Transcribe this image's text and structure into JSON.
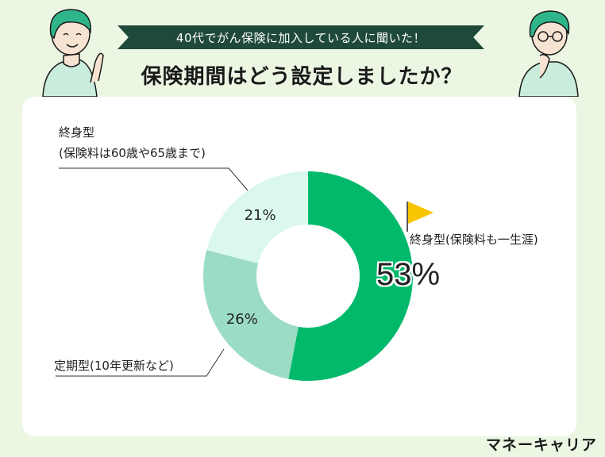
{
  "banner_text": "40代でがん保険に加入している人に聞いた！",
  "headline": "保険期間はどう設定しましたか？",
  "logo": "マネーキャリア",
  "chart_data": {
    "type": "pie",
    "title": "保険期間はどう設定しましたか？",
    "slices": [
      {
        "label": "終身型(保険料も一生涯)",
        "value": 53,
        "display": "53%",
        "color": "#00b96b"
      },
      {
        "label": "定期型(10年更新など)",
        "value": 26,
        "display": "26%",
        "color": "#9bdcc4"
      },
      {
        "label": "終身型\n(保険料は60歳や65歳まで)",
        "value": 21,
        "display": "21%",
        "color": "#dbf8ec"
      }
    ]
  },
  "labels": {
    "slice1_label": "終身型(保険料も一生涯)",
    "slice2_label": "定期型(10年更新など)",
    "slice3_line1": "終身型",
    "slice3_line2": "(保険料は60歳や65歳まで)"
  },
  "colors": {
    "background": "#ecf7e3",
    "banner": "#1f4a39",
    "flag": "#f7c600"
  }
}
